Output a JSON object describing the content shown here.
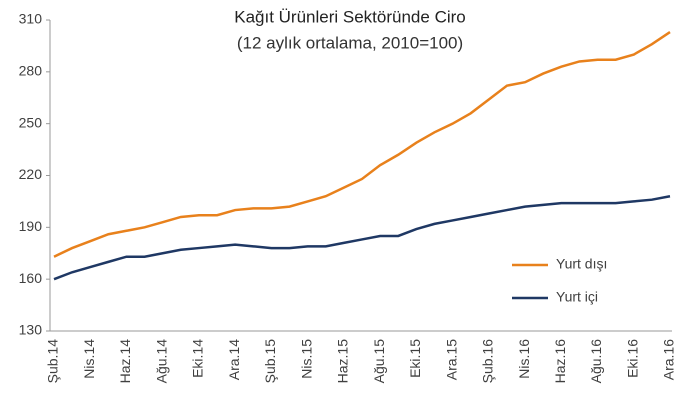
{
  "chart_data": {
    "type": "line",
    "title": "Kağıt Ürünleri Sektöründe Ciro",
    "subtitle": "(12 aylık ortalama, 2010=100)",
    "categories": [
      "Şub.14",
      null,
      "Nis.14",
      null,
      "Haz.14",
      null,
      "Ağu.14",
      null,
      "Eki.14",
      null,
      "Ara.14",
      null,
      "Şub.15",
      null,
      "Nis.15",
      null,
      "Haz.15",
      null,
      "Ağu.15",
      null,
      "Eki.15",
      null,
      "Ara.15",
      null,
      "Şub.16",
      null,
      "Nis.16",
      null,
      "Haz.16",
      null,
      "Ağu.16",
      null,
      "Eki.16",
      null,
      "Ara.16"
    ],
    "series": [
      {
        "name": "Yurt dışı",
        "color": "#e8811c",
        "values": [
          173,
          178,
          182,
          186,
          188,
          190,
          193,
          196,
          197,
          197,
          200,
          201,
          201,
          202,
          205,
          208,
          213,
          218,
          226,
          232,
          239,
          245,
          250,
          256,
          264,
          272,
          274,
          279,
          283,
          286,
          287,
          287,
          290,
          296,
          303
        ]
      },
      {
        "name": "Yurt içi",
        "color": "#1f3864",
        "values": [
          160,
          164,
          167,
          170,
          173,
          173,
          175,
          177,
          178,
          179,
          180,
          179,
          178,
          178,
          179,
          179,
          181,
          183,
          185,
          185,
          189,
          192,
          194,
          196,
          198,
          200,
          202,
          203,
          204,
          204,
          204,
          204,
          205,
          206,
          208
        ]
      }
    ],
    "ylim": [
      130,
      310
    ],
    "yticks": [
      130,
      160,
      190,
      220,
      250,
      280,
      310
    ],
    "grid": false,
    "legend": "right"
  }
}
